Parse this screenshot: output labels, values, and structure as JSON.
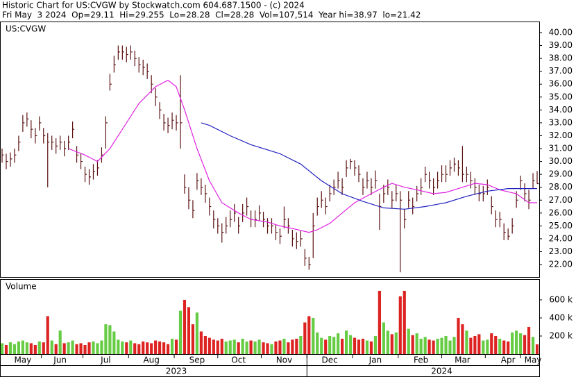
{
  "chart_data": {
    "type": "ohlc",
    "header": [
      "Historic Chart for US:CVGW by Stockwatch.com 604.687.1500 - (c) 2024",
      "Fri May  3 2024  Op=29.11  Hi=29.255  Lo=28.28  Cl=28.28  Vol=107,514  Year hi=38.97  lo=21.42"
    ],
    "symbol": "US:CVGW",
    "volume_label": "Volume",
    "bar_color": "#5a1010",
    "up_color": "#66cc44",
    "down_color": "#dd2222",
    "high": [
      31.0,
      30.6,
      30.7,
      31.0,
      32.0,
      33.6,
      33.8,
      33.2,
      32.6,
      33.5,
      32.6,
      32.2,
      32.0,
      31.8,
      32.0,
      31.6,
      32.0,
      33.1,
      31.2,
      30.6,
      29.6,
      29.4,
      29.8,
      30.1,
      31.1,
      33.5,
      36.8,
      38.2,
      39.0,
      39.0,
      38.9,
      39.0,
      38.6,
      38.1,
      37.9,
      37.6,
      36.7,
      35.7,
      34.6,
      33.7,
      33.4,
      33.8,
      33.6,
      36.7,
      29.0,
      28.0,
      27.0,
      29.1,
      28.7,
      28.2,
      27.2,
      26.2,
      25.6,
      25.2,
      25.7,
      26.2,
      26.7,
      25.7,
      26.7,
      27.2,
      26.2,
      26.2,
      26.6,
      26.1,
      25.6,
      25.6,
      25.1,
      24.8,
      26.5,
      25.6,
      24.7,
      24.5,
      24.6,
      23.2,
      22.6,
      26.0,
      27.2,
      27.7,
      27.2,
      28.2,
      28.6,
      29.2,
      28.7,
      30.1,
      30.2,
      30.1,
      29.7,
      28.7,
      29.2,
      28.7,
      29.3,
      27.5,
      28.2,
      28.6,
      27.7,
      28.2,
      27.7,
      26.3,
      27.7,
      27.2,
      28.1,
      28.7,
      29.6,
      29.2,
      28.7,
      29.2,
      29.7,
      29.7,
      30.1,
      30.3,
      30.1,
      31.2,
      29.6,
      29.2,
      28.7,
      28.2,
      28.1,
      28.6,
      27.3,
      26.2,
      26.1,
      25.2,
      24.8,
      25.6,
      27.7,
      28.9,
      28.3,
      27.8,
      29.1,
      29.255
    ],
    "low": [
      29.9,
      29.4,
      29.6,
      29.9,
      30.8,
      32.3,
      32.7,
      31.8,
      31.4,
      32.4,
      31.4,
      28.0,
      30.9,
      30.6,
      30.9,
      30.4,
      30.9,
      31.8,
      29.9,
      29.4,
      28.4,
      28.2,
      28.6,
      28.9,
      29.9,
      31.0,
      35.5,
      36.9,
      37.9,
      37.9,
      37.7,
      37.9,
      37.4,
      36.9,
      36.7,
      36.4,
      35.3,
      34.3,
      33.3,
      32.4,
      32.2,
      32.5,
      32.4,
      31.0,
      27.5,
      26.3,
      25.6,
      27.8,
      27.4,
      26.8,
      25.8,
      24.8,
      24.4,
      23.7,
      24.4,
      24.9,
      25.3,
      24.4,
      25.3,
      25.8,
      24.9,
      24.9,
      25.4,
      24.9,
      24.4,
      24.4,
      23.9,
      23.6,
      24.8,
      24.4,
      23.4,
      23.2,
      23.4,
      21.9,
      21.6,
      22.5,
      25.8,
      26.4,
      25.9,
      26.9,
      27.4,
      27.9,
      27.4,
      28.8,
      29.4,
      28.9,
      28.4,
      27.4,
      27.9,
      27.4,
      27.9,
      24.7,
      26.8,
      27.4,
      26.4,
      26.9,
      21.4,
      24.8,
      26.4,
      25.9,
      26.9,
      27.4,
      28.4,
      27.9,
      27.4,
      27.9,
      28.4,
      28.4,
      28.9,
      29.2,
      28.9,
      28.4,
      28.4,
      27.9,
      27.4,
      26.9,
      26.9,
      27.4,
      25.9,
      24.9,
      24.9,
      23.9,
      23.9,
      24.4,
      26.4,
      27.8,
      26.9,
      26.3,
      27.9,
      28.28
    ],
    "close": [
      30.5,
      30.0,
      30.2,
      30.5,
      31.5,
      33.0,
      33.3,
      32.5,
      32.0,
      33.0,
      32.0,
      31.5,
      31.5,
      31.2,
      31.5,
      31.0,
      31.5,
      32.5,
      30.5,
      30.0,
      29.0,
      28.8,
      29.2,
      29.5,
      30.5,
      33.0,
      36.0,
      37.5,
      38.5,
      38.5,
      38.3,
      38.5,
      38.0,
      37.5,
      37.3,
      37.0,
      36.0,
      35.0,
      34.0,
      33.0,
      32.8,
      33.2,
      33.0,
      33.0,
      28.0,
      27.0,
      26.2,
      28.5,
      28.0,
      27.5,
      26.5,
      25.5,
      25.0,
      24.5,
      25.0,
      25.5,
      26.0,
      25.0,
      26.0,
      26.5,
      25.5,
      25.5,
      26.0,
      25.5,
      25.0,
      25.0,
      24.5,
      24.2,
      25.5,
      25.0,
      24.0,
      23.8,
      24.0,
      22.5,
      22.0,
      25.0,
      26.5,
      27.0,
      26.5,
      27.5,
      28.0,
      28.5,
      28.0,
      29.5,
      30.0,
      29.5,
      29.0,
      28.0,
      28.5,
      28.0,
      28.5,
      26.5,
      27.5,
      28.0,
      27.0,
      27.5,
      27.0,
      25.5,
      27.0,
      26.5,
      27.5,
      28.0,
      29.0,
      28.5,
      28.0,
      28.5,
      29.0,
      29.0,
      29.5,
      29.8,
      29.5,
      29.0,
      29.0,
      28.5,
      28.0,
      27.5,
      27.5,
      28.0,
      26.5,
      25.5,
      25.5,
      24.5,
      24.2,
      25.0,
      27.0,
      28.5,
      27.5,
      27.0,
      28.5,
      28.28
    ],
    "volume": [
      120,
      100,
      130,
      110,
      140,
      150,
      130,
      120,
      100,
      140,
      130,
      420,
      150,
      110,
      260,
      120,
      130,
      150,
      110,
      120,
      100,
      130,
      140,
      120,
      150,
      330,
      320,
      250,
      160,
      140,
      130,
      150,
      120,
      110,
      140,
      130,
      120,
      150,
      140,
      130,
      110,
      170,
      160,
      480,
      600,
      520,
      330,
      460,
      250,
      200,
      180,
      160,
      150,
      170,
      140,
      150,
      160,
      130,
      170,
      140,
      150,
      140,
      160,
      130,
      120,
      110,
      140,
      150,
      170,
      130,
      160,
      170,
      200,
      350,
      420,
      400,
      240,
      180,
      160,
      200,
      190,
      230,
      170,
      260,
      210,
      180,
      160,
      170,
      150,
      140,
      200,
      700,
      350,
      260,
      220,
      240,
      640,
      700,
      280,
      210,
      230,
      170,
      190,
      160,
      150,
      170,
      180,
      200,
      150,
      190,
      400,
      330,
      260,
      180,
      200,
      220,
      150,
      160,
      230,
      200,
      170,
      150,
      140,
      240,
      260,
      230,
      210,
      300,
      190,
      107.514
    ],
    "series": [
      {
        "color": "#e020e0",
        "x": [
          16,
          20,
          23,
          26,
          29,
          33,
          37,
          40,
          42,
          44,
          47,
          50,
          53,
          57,
          60,
          64,
          67,
          70,
          74,
          76,
          79,
          82,
          85,
          89,
          92,
          94,
          97,
          100,
          104,
          107,
          110,
          114,
          117,
          120,
          124,
          127,
          129
        ],
        "values": [
          31.0,
          30.5,
          30.0,
          31.0,
          32.5,
          34.5,
          35.8,
          36.3,
          35.8,
          34.0,
          31.0,
          28.5,
          26.8,
          26.0,
          25.5,
          25.3,
          25.0,
          24.8,
          24.5,
          24.7,
          25.2,
          26.0,
          26.8,
          27.5,
          28.0,
          28.3,
          28.0,
          27.8,
          27.5,
          27.6,
          27.9,
          28.3,
          28.2,
          27.8,
          27.5,
          26.8,
          26.8
        ]
      },
      {
        "color": "#2020c0",
        "x": [
          48,
          50,
          55,
          60,
          67,
          72,
          77,
          82,
          87,
          92,
          97,
          102,
          107,
          112,
          117,
          122,
          127,
          129
        ],
        "values": [
          33.0,
          32.8,
          32.0,
          31.3,
          30.6,
          29.8,
          28.5,
          27.5,
          26.9,
          26.4,
          26.3,
          26.5,
          26.8,
          27.3,
          27.7,
          27.9,
          27.9,
          27.9
        ]
      }
    ],
    "xlim": [
      0,
      130
    ],
    "ylim": [
      20.98,
      40.86
    ],
    "yticks": [
      {
        "value": 22,
        "label": "22.00"
      },
      {
        "value": 23,
        "label": "23.00"
      },
      {
        "value": 24,
        "label": "24.00"
      },
      {
        "value": 25,
        "label": "25.00"
      },
      {
        "value": 26,
        "label": "26.00"
      },
      {
        "value": 27,
        "label": "27.00"
      },
      {
        "value": 28,
        "label": "28.00"
      },
      {
        "value": 29,
        "label": "29.00"
      },
      {
        "value": 30,
        "label": "30.00"
      },
      {
        "value": 31,
        "label": "31.00"
      },
      {
        "value": 32,
        "label": "32.00"
      },
      {
        "value": 33,
        "label": "33.00"
      },
      {
        "value": 34,
        "label": "34.00"
      },
      {
        "value": 35,
        "label": "35.00"
      },
      {
        "value": 36,
        "label": "36.00"
      },
      {
        "value": 37,
        "label": "37.00"
      },
      {
        "value": 38,
        "label": "38.00"
      },
      {
        "value": 39,
        "label": "39.00"
      },
      {
        "value": 40,
        "label": "40.00"
      }
    ],
    "y2lim": [
      0,
      830
    ],
    "y2ticks": [
      {
        "value": 200,
        "label": "200 k"
      },
      {
        "value": 400,
        "label": "400 k"
      },
      {
        "value": 600,
        "label": "600 k"
      }
    ],
    "xticks": [
      {
        "value": 5,
        "label": "May"
      },
      {
        "value": 14,
        "label": "Jun"
      },
      {
        "value": 25,
        "label": "Jul"
      },
      {
        "value": 36,
        "label": "Aug"
      },
      {
        "value": 47,
        "label": "Sep"
      },
      {
        "value": 57,
        "label": "Oct"
      },
      {
        "value": 68,
        "label": "Nov"
      },
      {
        "value": 79,
        "label": "Dec"
      },
      {
        "value": 90,
        "label": "Jan"
      },
      {
        "value": 101,
        "label": "Feb"
      },
      {
        "value": 111,
        "label": "Mar"
      },
      {
        "value": 122,
        "label": "Apr"
      },
      {
        "value": 128,
        "label": "May"
      }
    ],
    "years": [
      {
        "value": 42,
        "label": "2023"
      },
      {
        "value": 106,
        "label": "2024"
      }
    ]
  }
}
